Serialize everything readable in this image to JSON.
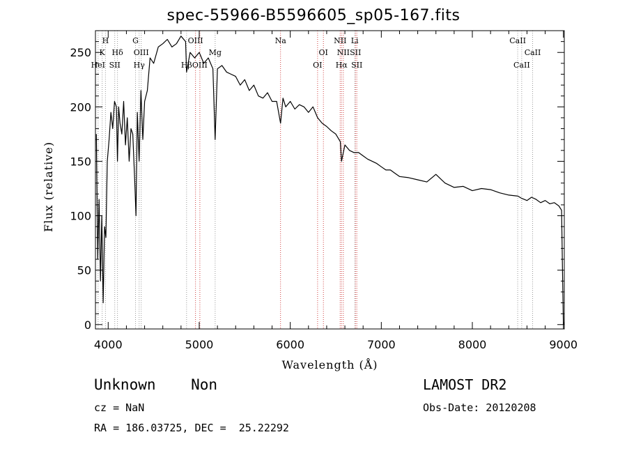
{
  "footer": {
    "classification": "Unknown    Non",
    "cz": "cz = NaN",
    "coords": "RA = 186.03725, DEC =  25.22292",
    "survey": "LAMOST DR2",
    "obs_date": "Obs-Date: 20120208"
  },
  "colors": {
    "line_markers": "#d04040",
    "gray_markers": "#999999",
    "spectrum": "#000000"
  },
  "chart_data": {
    "type": "line",
    "title": "spec-55966-B5596605_sp05-167.fits",
    "xlabel": "Wavelength (Å)",
    "ylabel": "Flux (relative)",
    "xlim": [
      3860,
      9010
    ],
    "ylim": [
      -4,
      270
    ],
    "xticks": [
      4000,
      5000,
      6000,
      7000,
      8000,
      9000
    ],
    "yticks": [
      0,
      50,
      100,
      150,
      200,
      250
    ],
    "grid": false,
    "series": [
      {
        "x": [
          3870,
          3885,
          3900,
          3915,
          3930,
          3945,
          3960,
          3975,
          3990,
          4010,
          4030,
          4050,
          4070,
          4090,
          4102,
          4115,
          4130,
          4150,
          4170,
          4190,
          4210,
          4230,
          4250,
          4270,
          4290,
          4305,
          4320,
          4340,
          4360,
          4380,
          4400,
          4430,
          4460,
          4500,
          4550,
          4600,
          4650,
          4700,
          4750,
          4800,
          4850,
          4861,
          4900,
          4950,
          5000,
          5050,
          5100,
          5150,
          5175,
          5200,
          5250,
          5300,
          5350,
          5400,
          5450,
          5500,
          5550,
          5600,
          5650,
          5700,
          5750,
          5800,
          5850,
          5893,
          5920,
          5950,
          6000,
          6050,
          6100,
          6150,
          6200,
          6250,
          6300,
          6350,
          6400,
          6450,
          6500,
          6550,
          6563,
          6600,
          6650,
          6700,
          6750,
          6800,
          6850,
          6900,
          6950,
          7000,
          7050,
          7100,
          7150,
          7200,
          7300,
          7400,
          7500,
          7600,
          7700,
          7800,
          7900,
          8000,
          8100,
          8200,
          8300,
          8400,
          8500,
          8542,
          8600,
          8650,
          8700,
          8750,
          8800,
          8850,
          8900,
          8950,
          8980,
          8990,
          9000
        ],
        "y": [
          175,
          60,
          115,
          40,
          100,
          20,
          90,
          80,
          150,
          170,
          195,
          180,
          205,
          200,
          150,
          200,
          185,
          175,
          205,
          165,
          190,
          150,
          180,
          175,
          135,
          100,
          195,
          150,
          215,
          170,
          205,
          215,
          245,
          240,
          255,
          258,
          262,
          255,
          258,
          265,
          260,
          232,
          250,
          245,
          250,
          240,
          245,
          235,
          170,
          235,
          238,
          232,
          230,
          228,
          220,
          225,
          215,
          220,
          210,
          208,
          213,
          205,
          205,
          185,
          208,
          200,
          205,
          198,
          202,
          200,
          195,
          200,
          190,
          185,
          182,
          178,
          175,
          168,
          150,
          165,
          160,
          158,
          158,
          155,
          152,
          150,
          148,
          145,
          142,
          142,
          139,
          136,
          135,
          133,
          131,
          138,
          130,
          126,
          127,
          123,
          125,
          124,
          121,
          119,
          118,
          116,
          114,
          117,
          115,
          112,
          114,
          111,
          112,
          109,
          105,
          50,
          0
        ]
      }
    ],
    "line_markers": [
      {
        "label": "HeI",
        "x": 3889,
        "color": "gray",
        "row": 3
      },
      {
        "label": "K",
        "x": 3934,
        "color": "gray",
        "row": 2
      },
      {
        "label": "H",
        "x": 3970,
        "color": "gray",
        "row": 1
      },
      {
        "label": "SII",
        "x": 4072,
        "color": "gray",
        "row": 3
      },
      {
        "label": "Hδ",
        "x": 4102,
        "color": "gray",
        "row": 2
      },
      {
        "label": "G",
        "x": 4300,
        "color": "gray",
        "row": 1
      },
      {
        "label": "OIII",
        "x": 4363,
        "color": "gray",
        "row": 2
      },
      {
        "label": "Hγ",
        "x": 4340,
        "color": "gray",
        "row": 3
      },
      {
        "label": "OIII",
        "x": 4959,
        "color": "red",
        "row": 1
      },
      {
        "label": "Hβ",
        "x": 4861,
        "color": "gray",
        "row": 3
      },
      {
        "label": "OIII",
        "x": 5007,
        "color": "red",
        "row": 3
      },
      {
        "label": "Mg",
        "x": 5175,
        "color": "gray",
        "row": 2
      },
      {
        "label": "Na",
        "x": 5893,
        "color": "red",
        "row": 1
      },
      {
        "label": "OI",
        "x": 6300,
        "color": "red",
        "row": 3
      },
      {
        "label": "OI",
        "x": 6364,
        "color": "red",
        "row": 2
      },
      {
        "label": "NII",
        "x": 6548,
        "color": "red",
        "row": 1
      },
      {
        "label": "NII",
        "x": 6583,
        "color": "red",
        "row": 2
      },
      {
        "label": "Hα",
        "x": 6563,
        "color": "red",
        "row": 3
      },
      {
        "label": "Li",
        "x": 6708,
        "color": "gray",
        "row": 1
      },
      {
        "label": "SII",
        "x": 6716,
        "color": "red",
        "row": 2
      },
      {
        "label": "SII",
        "x": 6731,
        "color": "red",
        "row": 3
      },
      {
        "label": "CaII",
        "x": 8498,
        "color": "gray",
        "row": 1
      },
      {
        "label": "CaII",
        "x": 8542,
        "color": "gray",
        "row": 3
      },
      {
        "label": "CaII",
        "x": 8662,
        "color": "gray",
        "row": 2
      }
    ]
  }
}
